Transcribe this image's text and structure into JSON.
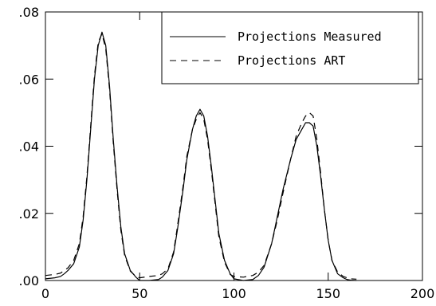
{
  "chart_data": {
    "type": "line",
    "xlim": [
      0,
      200
    ],
    "ylim": [
      0,
      0.08
    ],
    "x_ticks": [
      0,
      50,
      100,
      150,
      200
    ],
    "x_tick_labels": [
      "0",
      "50",
      "100",
      "150",
      "200"
    ],
    "y_ticks": [
      0,
      0.02,
      0.04,
      0.06,
      0.08
    ],
    "y_tick_labels": [
      ".00",
      ".02",
      ".04",
      ".06",
      ".08"
    ],
    "grid": false,
    "legend_position": "top-right",
    "series": [
      {
        "name": "Projections Measured",
        "style": "solid",
        "color": "#000000",
        "x": [
          0,
          5,
          8,
          10,
          12,
          15,
          18,
          20,
          22,
          24,
          26,
          28,
          30,
          32,
          34,
          36,
          38,
          40,
          42,
          45,
          48,
          50,
          55,
          60,
          62,
          65,
          68,
          70,
          73,
          75,
          78,
          80,
          82,
          84,
          86,
          88,
          90,
          92,
          95,
          98,
          100,
          105,
          110,
          113,
          116,
          120,
          123,
          126,
          130,
          133,
          136,
          138,
          140,
          142,
          144,
          146,
          148,
          150,
          152,
          155,
          158,
          160,
          162,
          165
        ],
        "y": [
          0.0005,
          0.0008,
          0.0012,
          0.002,
          0.003,
          0.005,
          0.01,
          0.018,
          0.03,
          0.045,
          0.06,
          0.07,
          0.074,
          0.07,
          0.058,
          0.042,
          0.028,
          0.016,
          0.008,
          0.003,
          0.001,
          0.0,
          0.0,
          0.0003,
          0.001,
          0.003,
          0.008,
          0.015,
          0.027,
          0.036,
          0.045,
          0.049,
          0.051,
          0.049,
          0.043,
          0.034,
          0.024,
          0.014,
          0.006,
          0.002,
          0.0005,
          0.0,
          0.0003,
          0.0015,
          0.004,
          0.011,
          0.019,
          0.027,
          0.036,
          0.042,
          0.045,
          0.047,
          0.047,
          0.046,
          0.04,
          0.031,
          0.021,
          0.012,
          0.006,
          0.002,
          0.0008,
          0.0003,
          0.0001,
          0.0
        ]
      },
      {
        "name": "Projections ART",
        "style": "dashed",
        "color": "#000000",
        "x": [
          0,
          5,
          8,
          10,
          12,
          15,
          18,
          20,
          22,
          24,
          26,
          28,
          30,
          32,
          34,
          36,
          38,
          40,
          42,
          45,
          48,
          50,
          55,
          60,
          62,
          65,
          68,
          70,
          73,
          75,
          78,
          80,
          82,
          84,
          86,
          88,
          90,
          92,
          95,
          98,
          100,
          105,
          110,
          113,
          116,
          120,
          123,
          126,
          130,
          133,
          136,
          138,
          140,
          142,
          144,
          146,
          148,
          150,
          152,
          155,
          158,
          160,
          162,
          165
        ],
        "y": [
          0.0015,
          0.0018,
          0.0022,
          0.003,
          0.0038,
          0.006,
          0.011,
          0.019,
          0.031,
          0.046,
          0.061,
          0.071,
          0.0735,
          0.069,
          0.057,
          0.041,
          0.027,
          0.015,
          0.0075,
          0.0028,
          0.0012,
          0.0008,
          0.0012,
          0.0015,
          0.002,
          0.0035,
          0.0085,
          0.016,
          0.028,
          0.037,
          0.045,
          0.048,
          0.05,
          0.048,
          0.042,
          0.033,
          0.023,
          0.013,
          0.0055,
          0.0018,
          0.0012,
          0.001,
          0.0015,
          0.0025,
          0.0045,
          0.011,
          0.018,
          0.026,
          0.036,
          0.043,
          0.047,
          0.049,
          0.05,
          0.049,
          0.042,
          0.032,
          0.021,
          0.012,
          0.006,
          0.0025,
          0.0012,
          0.0008,
          0.0005,
          0.0004
        ]
      }
    ]
  }
}
